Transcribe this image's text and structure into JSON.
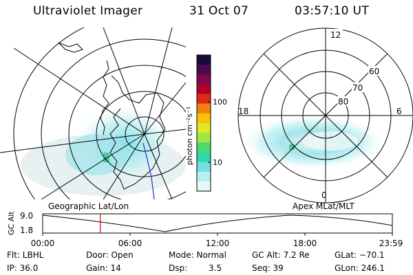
{
  "header": {
    "title": "Ultraviolet Imager",
    "date": "31 Oct 07",
    "time": "03:57:10 UT"
  },
  "colorbar": {
    "unit_label": "photon cm⁻²s⁻¹",
    "ticks": [
      "100",
      "10"
    ],
    "colors": [
      "#1a0a3a",
      "#4a0a52",
      "#7a0a4a",
      "#b0002a",
      "#e02a18",
      "#f08010",
      "#f7c20a",
      "#dfe820",
      "#9fe840",
      "#50d870",
      "#30d8b0",
      "#70e0e0",
      "#b8eef0",
      "#e8f8f8"
    ]
  },
  "left_map": {
    "caption": "Geographic Lat/Lon"
  },
  "right_map": {
    "caption": "Apex MLat/MLT",
    "mlt_labels": {
      "top": "12",
      "left": "18",
      "right": "6",
      "bottom": "0"
    },
    "lat_labels": [
      "60",
      "70",
      "80"
    ]
  },
  "timeline": {
    "y_label": "GC Alt",
    "y_ticks": [
      "9.0",
      "1.8"
    ],
    "x_ticks": [
      "00:00",
      "06:00",
      "12:00",
      "18:00",
      "23:59"
    ],
    "current_time_hours": 3.95,
    "marker_color": "#e00000"
  },
  "status": {
    "flt": "Flt: LBHL",
    "ip": "IP: 36.0",
    "door": "Door: Open",
    "gain": "Gain: 14",
    "mode": "Mode: Normal",
    "dsp_label": "Dsp:",
    "dsp_value": "3.5",
    "gc_alt": "GC Alt: 7.2 Re",
    "seq": "Seq: 39",
    "glat": "GLat: −70.1",
    "glon": "GLon: 246.1"
  }
}
